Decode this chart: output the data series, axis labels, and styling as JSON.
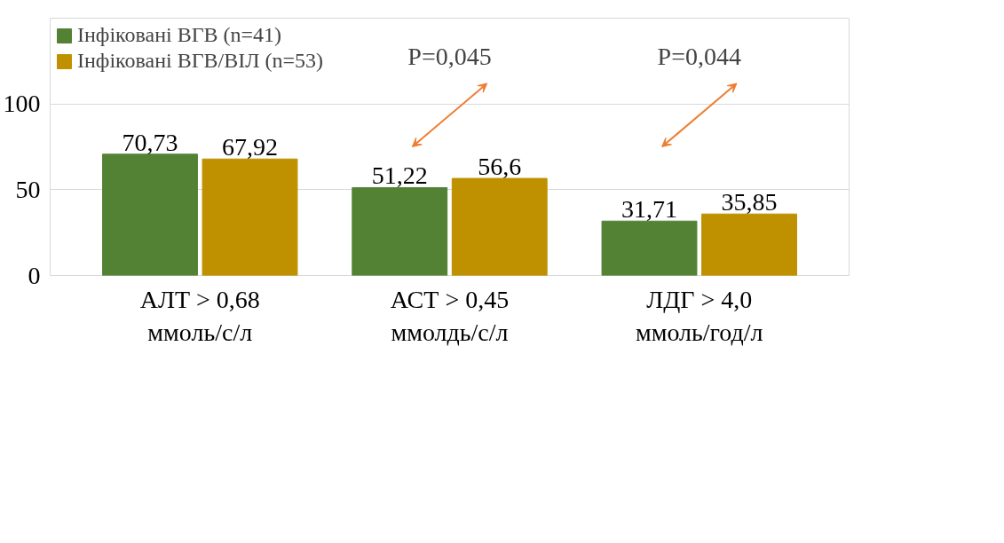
{
  "chart_data": {
    "type": "bar",
    "categories": [
      "АЛТ > 0,68\nммоль/с/л",
      "АСТ > 0,45\nммолдь/с/л",
      "ЛДГ > 4,0\nммоль/год/л"
    ],
    "series": [
      {
        "name": "Інфіковані ВГВ (n=41)",
        "color": "#548235",
        "values": [
          70.73,
          51.22,
          31.71
        ],
        "value_labels": [
          "70,73",
          "51,22",
          "31,71"
        ]
      },
      {
        "name": "Інфіковані ВГВ/ВІЛ (n=53)",
        "color": "#bf9000",
        "values": [
          67.92,
          56.6,
          35.85
        ],
        "value_labels": [
          "67,92",
          "56,6",
          "35,85"
        ]
      }
    ],
    "ylim": [
      0,
      150
    ],
    "yticks": [
      0,
      50,
      100,
      {
        "value": 150,
        "label": null
      }
    ],
    "grid": "y",
    "legend": "top left",
    "annotations": [
      "P=0,045",
      "P=0,044"
    ]
  }
}
